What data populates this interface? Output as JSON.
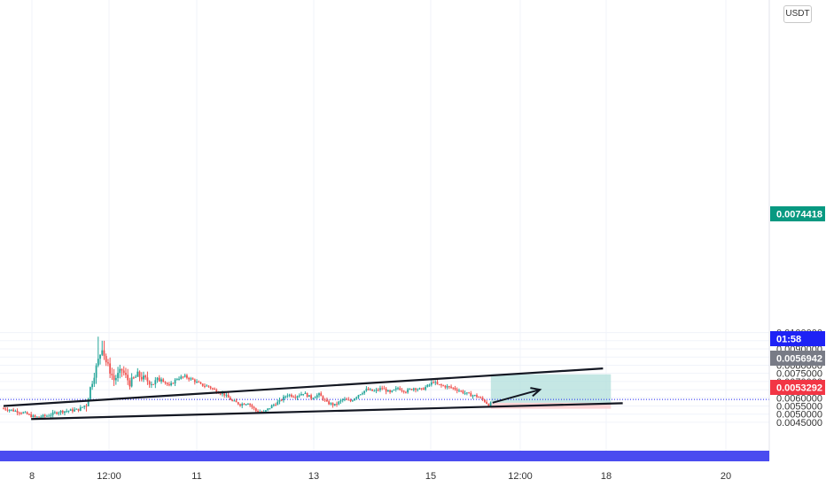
{
  "price_scale": {
    "unit_label": "USDT",
    "labels": [
      "0.0100000",
      "0.0095000",
      "0.0090000",
      "0.0085000",
      "0.0080000",
      "0.0075000",
      "0.0070000",
      "0.0065000",
      "0.0060000",
      "0.0055000",
      "0.0050000",
      "0.0045000"
    ]
  },
  "badges": {
    "target": "0.0074418",
    "current": "0.0056942",
    "stop": "0.0053292",
    "countdown": "01:58"
  },
  "colors": {
    "up_candle": "#26a69a",
    "down_candle": "#ef5350",
    "target_badge": "#089981",
    "current_badge": "#787b86",
    "stop_badge": "#f23645",
    "countdown_badge": "#1e22f5",
    "volume_band": "#4a4cf0",
    "profit_zone": "#b2dfdb",
    "loss_zone": "#fccbcd",
    "trend_lines": "#131722"
  },
  "chart_data": {
    "type": "candlestick",
    "title": "",
    "xlabel": "",
    "ylabel": "",
    "ylim": [
      0.0044,
      0.01025
    ],
    "x_ticks": [
      "8",
      "12:00",
      "11",
      "13",
      "15",
      "12:00",
      "18",
      "20"
    ],
    "grid": true,
    "ohlc_anchors": [
      {
        "t": 0,
        "close": 0.00535
      },
      {
        "t": 2,
        "close": 0.00525
      },
      {
        "t": 5,
        "close": 0.00508
      },
      {
        "t": 8,
        "close": 0.0048
      },
      {
        "t": 11,
        "close": 0.0049
      },
      {
        "t": 14,
        "close": 0.00515
      },
      {
        "t": 17,
        "close": 0.00522
      },
      {
        "t": 19,
        "close": 0.00528
      },
      {
        "t": 21,
        "close": 0.0056
      },
      {
        "t": 22,
        "close": 0.0066
      },
      {
        "t": 24,
        "close": 0.0083
      },
      {
        "t": 25,
        "close": 0.0091
      },
      {
        "t": 26,
        "close": 0.0082
      },
      {
        "t": 28,
        "close": 0.0071
      },
      {
        "t": 30,
        "close": 0.0077
      },
      {
        "t": 32,
        "close": 0.0069
      },
      {
        "t": 34,
        "close": 0.0074
      },
      {
        "t": 36,
        "close": 0.0071
      },
      {
        "t": 38,
        "close": 0.0069
      },
      {
        "t": 40,
        "close": 0.0072
      },
      {
        "t": 42,
        "close": 0.0067
      },
      {
        "t": 44,
        "close": 0.0072
      },
      {
        "t": 46,
        "close": 0.0073
      },
      {
        "t": 48,
        "close": 0.0071
      },
      {
        "t": 50,
        "close": 0.0068
      },
      {
        "t": 52,
        "close": 0.0067
      },
      {
        "t": 54,
        "close": 0.0064
      },
      {
        "t": 56,
        "close": 0.0062
      },
      {
        "t": 58,
        "close": 0.0058
      },
      {
        "t": 60,
        "close": 0.0056
      },
      {
        "t": 62,
        "close": 0.0057
      },
      {
        "t": 64,
        "close": 0.0052
      },
      {
        "t": 66,
        "close": 0.0051
      },
      {
        "t": 68,
        "close": 0.0055
      },
      {
        "t": 70,
        "close": 0.0058
      },
      {
        "t": 72,
        "close": 0.0062
      },
      {
        "t": 74,
        "close": 0.0061
      },
      {
        "t": 76,
        "close": 0.0063
      },
      {
        "t": 78,
        "close": 0.006
      },
      {
        "t": 80,
        "close": 0.0062
      },
      {
        "t": 82,
        "close": 0.0057
      },
      {
        "t": 84,
        "close": 0.00555
      },
      {
        "t": 86,
        "close": 0.0059
      },
      {
        "t": 88,
        "close": 0.0058
      },
      {
        "t": 90,
        "close": 0.0062
      },
      {
        "t": 92,
        "close": 0.0065
      },
      {
        "t": 94,
        "close": 0.0064
      },
      {
        "t": 96,
        "close": 0.0066
      },
      {
        "t": 98,
        "close": 0.0063
      },
      {
        "t": 100,
        "close": 0.0066
      },
      {
        "t": 102,
        "close": 0.0064
      },
      {
        "t": 104,
        "close": 0.0066
      },
      {
        "t": 106,
        "close": 0.0065
      },
      {
        "t": 108,
        "close": 0.0068
      },
      {
        "t": 109,
        "close": 0.007
      },
      {
        "t": 110,
        "close": 0.0068
      },
      {
        "t": 112,
        "close": 0.0067
      },
      {
        "t": 114,
        "close": 0.0066
      },
      {
        "t": 116,
        "close": 0.0064
      },
      {
        "t": 118,
        "close": 0.0062
      },
      {
        "t": 120,
        "close": 0.0061
      },
      {
        "t": 122,
        "close": 0.0058
      },
      {
        "t": 123,
        "close": 0.00555
      },
      {
        "t": 124,
        "close": 0.0057
      }
    ],
    "annotations": {
      "upper_trendline": [
        [
          0,
          0.0055
        ],
        [
          152,
          0.0078
        ]
      ],
      "lower_trendline": [
        [
          7,
          0.0047
        ],
        [
          157,
          0.00567
        ]
      ],
      "long_position": {
        "t_start": 124,
        "t_end": 154,
        "entry": 0.0056942,
        "target": 0.0074418,
        "stop": 0.0053292
      },
      "arrow": {
        "from": [
          124,
          0.0057
        ],
        "to": [
          136,
          0.0065
        ]
      },
      "current_price_line": 0.0059
    }
  }
}
